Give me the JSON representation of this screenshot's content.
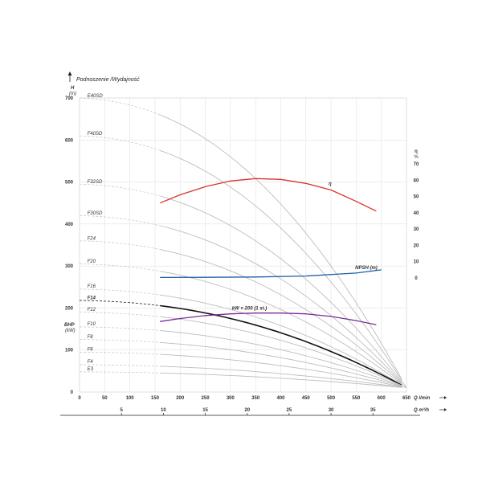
{
  "chart_data": {
    "type": "line",
    "title": "Podnoszenie /Wydajność",
    "y_left_label": [
      "H",
      "(m)"
    ],
    "y_left_ticks": [
      0,
      100,
      200,
      300,
      400,
      500,
      600,
      700
    ],
    "y_left_lower_label": [
      "BHP",
      "(kW)"
    ],
    "y_right_label": [
      "η",
      "%"
    ],
    "y_right_ticks": [
      0,
      10,
      20,
      30,
      40,
      50,
      60,
      70
    ],
    "x_bottom_label": "Q l/min",
    "x_bottom_ticks": [
      0,
      50,
      100,
      150,
      200,
      250,
      300,
      350,
      400,
      450,
      500,
      550,
      600,
      650
    ],
    "x_second_label": "Q m³/h",
    "x_second_ticks": [
      5,
      10,
      15,
      20,
      25,
      30,
      35
    ],
    "xlim": [
      0,
      650
    ],
    "ylim": [
      0,
      700
    ],
    "grid": true,
    "stage_curves": [
      {
        "name": "E40SD",
        "shutoff": 700
      },
      {
        "name": "F40SD",
        "shutoff": 610
      },
      {
        "name": "F32SD",
        "shutoff": 495
      },
      {
        "name": "F30SD",
        "shutoff": 420
      },
      {
        "name": "F24",
        "shutoff": 360
      },
      {
        "name": "F20",
        "shutoff": 305
      },
      {
        "name": "F16",
        "shutoff": 245
      },
      {
        "name": "F14",
        "shutoff": 218,
        "highlight": true
      },
      {
        "name": "F12",
        "shutoff": 190
      },
      {
        "name": "F10",
        "shutoff": 155
      },
      {
        "name": "F8",
        "shutoff": 125
      },
      {
        "name": "F6",
        "shutoff": 95
      },
      {
        "name": "F4",
        "shutoff": 65
      },
      {
        "name": "E3",
        "shutoff": 48
      }
    ],
    "series": [
      {
        "name": "η",
        "color": "#d9342b",
        "axis": "right",
        "x": [
          160,
          200,
          250,
          300,
          350,
          400,
          450,
          500,
          550,
          590
        ],
        "y": [
          46,
          51,
          56,
          59.5,
          61,
          60.5,
          58,
          54,
          47,
          41
        ]
      },
      {
        "name": "NPSH (m)",
        "color": "#1f5fa8",
        "axis": "right",
        "x": [
          160,
          250,
          350,
          450,
          550,
          600
        ],
        "y": [
          0.3,
          0.4,
          0.6,
          1.2,
          3,
          5
        ]
      },
      {
        "name": "kW × 200 (1 st.)",
        "color": "#7a2a9a",
        "axis": "left",
        "x": [
          160,
          200,
          250,
          300,
          350,
          400,
          450,
          500,
          550,
          590
        ],
        "y": [
          168,
          175,
          182,
          186,
          188,
          188,
          186,
          180,
          170,
          160
        ]
      }
    ]
  }
}
